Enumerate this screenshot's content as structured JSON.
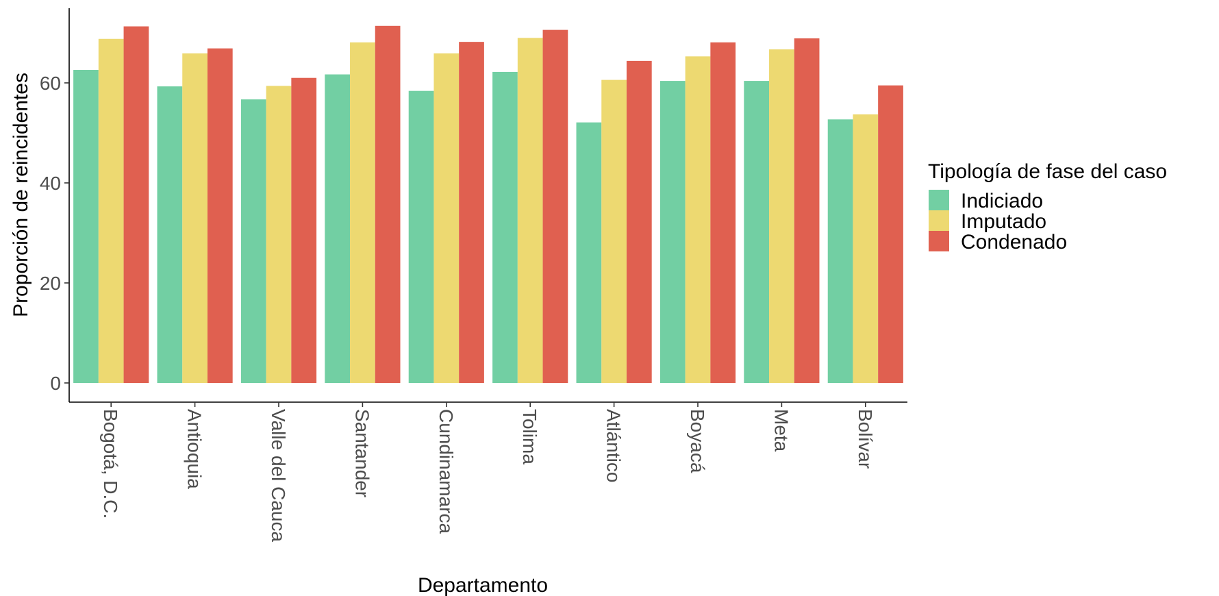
{
  "chart_data": {
    "type": "bar",
    "xlabel": "Departamento",
    "ylabel": "Proporción de reincidentes",
    "ylim": [
      0,
      75
    ],
    "y_ticks": [
      0,
      20,
      40,
      60
    ],
    "grid": false,
    "legend_title": "Tipología de fase del caso",
    "legend_position": "right",
    "categories": [
      "Bogotá, D.C.",
      "Antioquia",
      "Valle del Cauca",
      "Santander",
      "Cundinamarca",
      "Tolima",
      "Atlántico",
      "Boyacá",
      "Meta",
      "Bolívar"
    ],
    "series": [
      {
        "name": "Indiciado",
        "color": "#72CFA3",
        "values": [
          62.6,
          59.3,
          56.7,
          61.7,
          58.4,
          62.2,
          52.1,
          60.4,
          60.4,
          52.7
        ]
      },
      {
        "name": "Imputado",
        "color": "#EDD971",
        "values": [
          68.8,
          65.9,
          59.4,
          68.1,
          65.9,
          69.0,
          60.6,
          65.3,
          66.7,
          53.7
        ]
      },
      {
        "name": "Condenado",
        "color": "#E06050",
        "values": [
          71.3,
          66.9,
          61.0,
          71.4,
          68.2,
          70.6,
          64.4,
          68.1,
          68.9,
          59.5
        ]
      }
    ]
  }
}
